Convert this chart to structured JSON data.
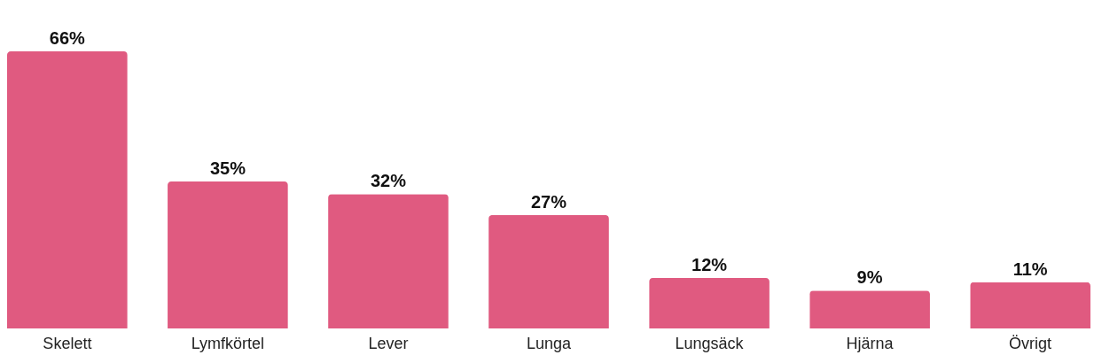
{
  "chart_data": {
    "type": "bar",
    "categories": [
      "Skelett",
      "Lymfkörtel",
      "Lever",
      "Lunga",
      "Lungsäck",
      "Hjärna",
      "Övrigt"
    ],
    "values": [
      66,
      35,
      32,
      27,
      12,
      9,
      11
    ],
    "value_labels": [
      "66%",
      "35%",
      "32%",
      "27%",
      "12%",
      "9%",
      "11%"
    ],
    "color": "#e05a80",
    "tick_labels": "x"
  }
}
